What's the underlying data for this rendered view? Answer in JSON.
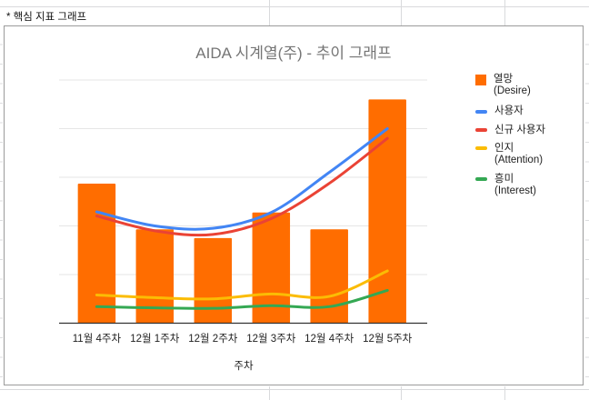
{
  "sheet": {
    "note_cell_text": "* 핵심 지표 그래프"
  },
  "chart": {
    "title": "AIDA 시계열(주) - 추이 그래프",
    "x_axis_title": "주차",
    "legend": [
      {
        "name": "열망",
        "sub": "(Desire)",
        "color": "#FF6D00",
        "marker": "square"
      },
      {
        "name": "사용자",
        "sub": "",
        "color": "#4285F4",
        "marker": "line"
      },
      {
        "name": "신규 사용자",
        "sub": "",
        "color": "#EA4335",
        "marker": "line"
      },
      {
        "name": "인지",
        "sub": "(Attention)",
        "color": "#FBBC04",
        "marker": "line"
      },
      {
        "name": "흥미",
        "sub": "(Interest)",
        "color": "#34A853",
        "marker": "line"
      }
    ]
  },
  "chart_data": {
    "type": "combo (bar + smoothed line)",
    "title": "AIDA 시계열(주) - 추이 그래프",
    "xlabel": "주차",
    "ylabel": "",
    "y_axis_labels_visible": false,
    "ylim": [
      0,
      100
    ],
    "grid": true,
    "legend_position": "right",
    "categories": [
      "11월 4주차",
      "12월 1주차",
      "12월 2주차",
      "12월 3주차",
      "12월 4주차",
      "12월 5주차"
    ],
    "series": [
      {
        "name": "열망 (Desire)",
        "type": "bar",
        "color": "#FF6D00",
        "values": [
          57.4,
          38.6,
          35.0,
          45.5,
          38.6,
          92.0
        ]
      },
      {
        "name": "사용자",
        "type": "line",
        "color": "#4285F4",
        "values": [
          45.8,
          40.0,
          39.0,
          45.5,
          62.0,
          80.0
        ]
      },
      {
        "name": "신규 사용자",
        "type": "line",
        "color": "#EA4335",
        "values": [
          44.1,
          38.0,
          36.5,
          43.0,
          57.5,
          76.0
        ]
      },
      {
        "name": "인지 (Attention)",
        "type": "line",
        "color": "#FBBC04",
        "values": [
          11.6,
          10.5,
          10.0,
          12.0,
          11.0,
          21.5
        ]
      },
      {
        "name": "흥미 (Interest)",
        "type": "line",
        "color": "#34A853",
        "values": [
          6.8,
          6.3,
          6.1,
          7.2,
          6.8,
          13.5
        ]
      }
    ]
  }
}
